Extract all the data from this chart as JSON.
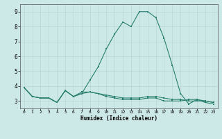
{
  "xlabel": "Humidex (Indice chaleur)",
  "x": [
    0,
    1,
    2,
    3,
    4,
    5,
    6,
    7,
    8,
    9,
    10,
    11,
    12,
    13,
    14,
    15,
    16,
    17,
    18,
    19,
    20,
    21,
    22,
    23
  ],
  "series_main": [
    3.9,
    3.3,
    3.2,
    3.2,
    2.9,
    3.7,
    3.3,
    3.5,
    4.4,
    5.3,
    6.5,
    7.5,
    8.3,
    8.0,
    9.0,
    9.0,
    8.6,
    7.2,
    5.4,
    3.5,
    2.8,
    3.1,
    2.9,
    2.8
  ],
  "series_low1": [
    3.9,
    3.3,
    3.2,
    3.2,
    2.9,
    3.7,
    3.3,
    3.5,
    3.6,
    3.5,
    3.3,
    3.2,
    3.1,
    3.1,
    3.1,
    3.2,
    3.2,
    3.0,
    3.0,
    3.0,
    3.1,
    3.1,
    3.0,
    2.9
  ],
  "series_low2": [
    3.9,
    3.3,
    3.2,
    3.2,
    2.9,
    3.7,
    3.3,
    3.6,
    3.6,
    3.5,
    3.4,
    3.3,
    3.2,
    3.2,
    3.2,
    3.3,
    3.3,
    3.2,
    3.1,
    3.1,
    3.0,
    3.0,
    3.0,
    2.9
  ],
  "line_color": "#2a7f6f",
  "bg_color": "#cce9e7",
  "grid_color": "#b8d8d5",
  "ylim": [
    2.5,
    9.5
  ],
  "yticks": [
    3,
    4,
    5,
    6,
    7,
    8,
    9
  ],
  "xlim": [
    -0.5,
    23.5
  ]
}
